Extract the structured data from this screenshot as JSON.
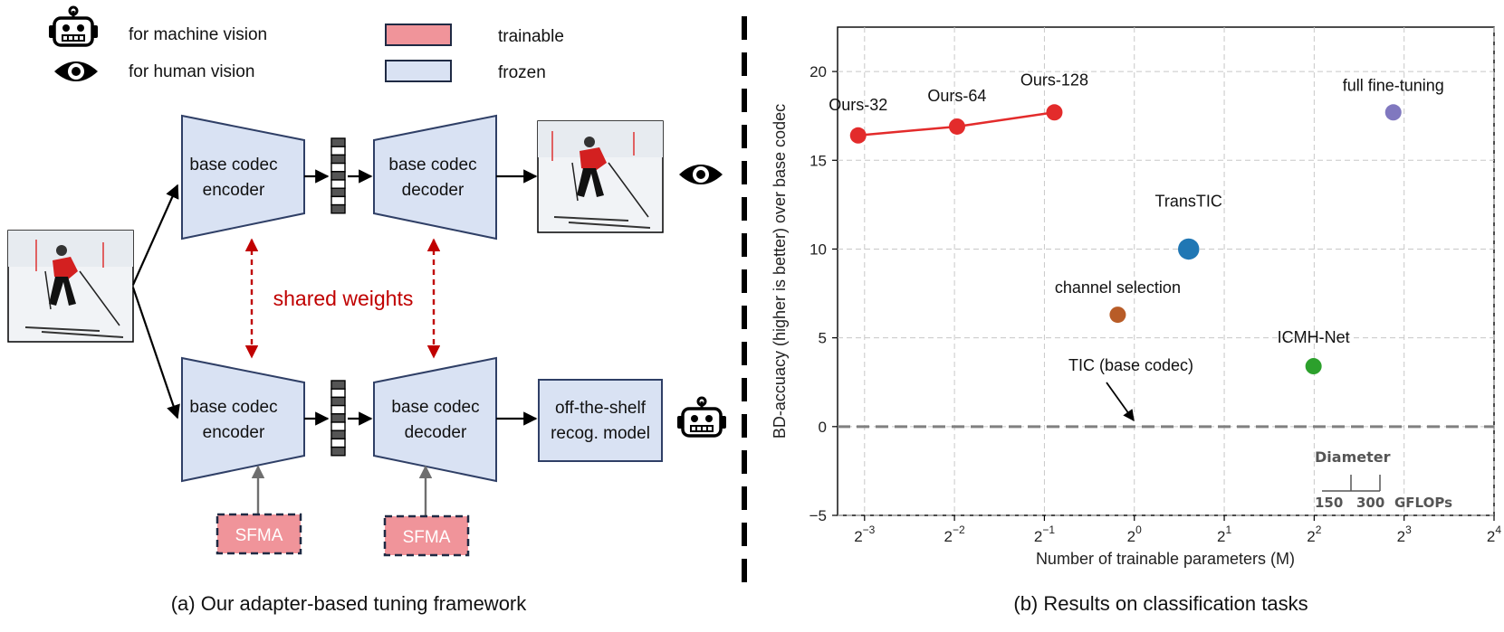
{
  "legend": {
    "machine_label": "for machine vision",
    "human_label": "for human vision",
    "trainable_label": "trainable",
    "frozen_label": "frozen",
    "trainable_color": "#f0949a",
    "frozen_color": "#d9e2f3"
  },
  "diagram": {
    "encoder_line1": "base codec",
    "encoder_line2": "encoder",
    "decoder_line1": "base codec",
    "decoder_line2": "decoder",
    "shared_weights": "shared weights",
    "recog_line1": "off-the-shelf",
    "recog_line2": "recog. model",
    "sfma": "SFMA",
    "shared_color": "#c00000",
    "caption": "(a) Our adapter-based tuning framework"
  },
  "chart_caption": "(b) Results on classification tasks",
  "chart_data": {
    "type": "scatter",
    "xlabel": "Number of trainable parameters (M)",
    "ylabel": "BD-accuacy (higher is better) over base codec",
    "x_scale": "log2",
    "xlim_log2": [
      -3.3,
      4
    ],
    "ylim": [
      -5,
      22.5
    ],
    "x_ticks_log2": [
      -3,
      -2,
      -1,
      0,
      1,
      2,
      3,
      4
    ],
    "y_ticks": [
      -5,
      0,
      5,
      10,
      15,
      20
    ],
    "grid": true,
    "series": [
      {
        "name": "Ours-32",
        "x": 0.119,
        "y": 16.4,
        "gflops": 22,
        "color": "#e32b2b"
      },
      {
        "name": "Ours-64",
        "x": 0.255,
        "y": 16.9,
        "gflops": 22,
        "color": "#e32b2b"
      },
      {
        "name": "Ours-128",
        "x": 0.54,
        "y": 17.7,
        "gflops": 29,
        "color": "#e32b2b"
      },
      {
        "name": "full fine-tuning",
        "x": 7.36,
        "y": 17.7,
        "gflops": 13,
        "color": "#8078bf"
      },
      {
        "name": "TransTIC",
        "x": 1.52,
        "y": 10.0,
        "gflops": 110,
        "color": "#2077b4"
      },
      {
        "name": "channel selection",
        "x": 0.88,
        "y": 6.3,
        "gflops": 14,
        "color": "#b85c27"
      },
      {
        "name": "ICMH-Net",
        "x": 3.98,
        "y": 3.4,
        "gflops": 17,
        "color": "#2ca02c"
      }
    ],
    "ours_line": [
      "Ours-32",
      "Ours-64",
      "Ours-128"
    ],
    "baseline": {
      "label": "TIC (base codec)",
      "y": 0
    },
    "size_legend": {
      "title": "Diameter",
      "v1": "150",
      "v2": "300",
      "unit": "GFLOPs"
    }
  }
}
